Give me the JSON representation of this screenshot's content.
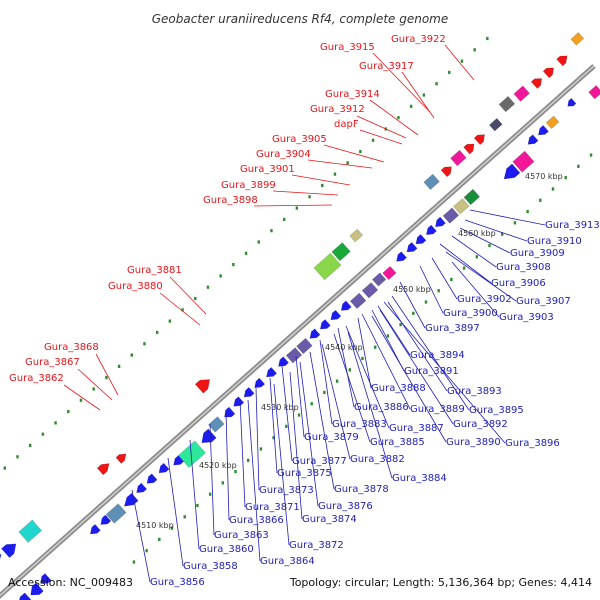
{
  "title": "Geobacter uraniireducens Rf4, complete genome",
  "footer": {
    "accession": "Accession: NC_009483",
    "summary": "Topology: circular; Length: 5,136,364 bp; Genes: 4,414"
  },
  "colors": {
    "backbone": "#999999",
    "forward_label": "#e8151a",
    "reverse_label": "#1f1fb8",
    "dots": "#2e8b2e"
  },
  "scale_ticks": [
    "4510 kbp",
    "4520 kbp",
    "4530 kbp",
    "4540 kbp",
    "4550 kbp",
    "4560 kbp",
    "4570 kbp"
  ],
  "forward_labels": [
    "Gura_3922",
    "Gura_3915",
    "Gura_3917",
    "Gura_3914",
    "Gura_3912",
    "dapF",
    "Gura_3905",
    "Gura_3904",
    "Gura_3901",
    "Gura_3899",
    "Gura_3898",
    "Gura_3881",
    "Gura_3880",
    "Gura_3868",
    "Gura_3867",
    "Gura_3862"
  ],
  "reverse_labels": [
    "Gura_3913",
    "Gura_3910",
    "Gura_3909",
    "Gura_3908",
    "Gura_3906",
    "Gura_3907",
    "Gura_3902",
    "Gura_3900",
    "Gura_3903",
    "Gura_3897",
    "Gura_3894",
    "Gura_3891",
    "Gura_3893",
    "Gura_3888",
    "Gura_3895",
    "Gura_3886",
    "Gura_3889",
    "Gura_3883",
    "Gura_3892",
    "Gura_3887",
    "Gura_3879",
    "Gura_3885",
    "Gura_3890",
    "Gura_3896",
    "Gura_3877",
    "Gura_3882",
    "Gura_3875",
    "Gura_3884",
    "Gura_3873",
    "Gura_3878",
    "Gura_3871",
    "Gura_3876",
    "Gura_3866",
    "Gura_3874",
    "Gura_3863",
    "Gura_3872",
    "Gura_3860",
    "Gura_3864",
    "Gura_3858",
    "Gura_3856"
  ]
}
